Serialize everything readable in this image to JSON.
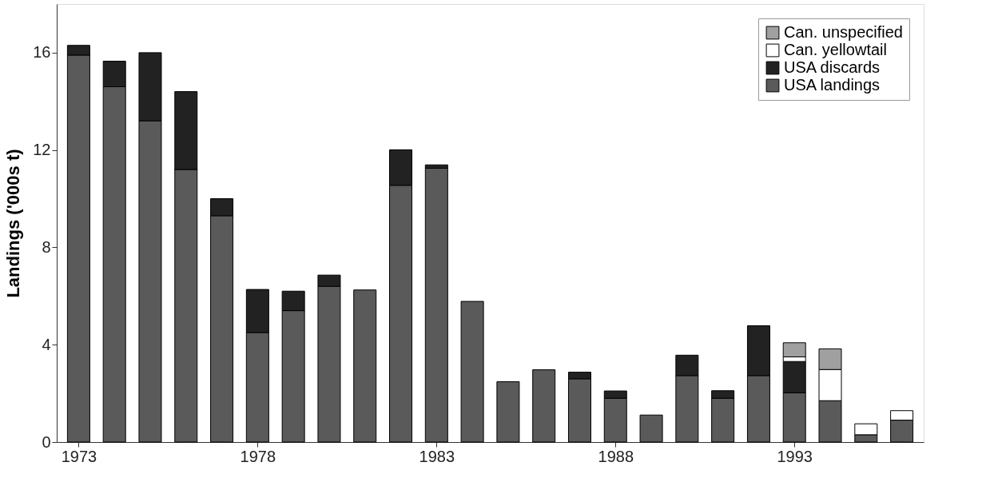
{
  "chart_data": {
    "type": "bar",
    "stacked": true,
    "ylabel": "Landings ('000s t)",
    "x": [
      1973,
      1974,
      1975,
      1976,
      1977,
      1978,
      1979,
      1980,
      1981,
      1982,
      1983,
      1984,
      1985,
      1986,
      1987,
      1988,
      1989,
      1990,
      1991,
      1992,
      1993,
      1994,
      1995,
      1996
    ],
    "xlim": [
      1972.5,
      1996.5
    ],
    "xticks": [
      1973,
      1978,
      1983,
      1988,
      1993
    ],
    "ylim": [
      0,
      18
    ],
    "yticks": [
      0,
      4,
      8,
      12,
      16
    ],
    "grid": false,
    "legend": "top right",
    "series": [
      {
        "name": "USA landings",
        "color": "#5a5a5a",
        "values": [
          15.9,
          14.6,
          13.2,
          11.2,
          9.3,
          4.5,
          5.4,
          6.4,
          6.25,
          10.55,
          11.25,
          5.78,
          2.48,
          2.97,
          2.6,
          1.8,
          1.11,
          2.73,
          1.8,
          2.73,
          2.02,
          1.7,
          0.3,
          0.9
        ]
      },
      {
        "name": "USA discards",
        "color": "#222222",
        "values": [
          0.4,
          1.05,
          2.8,
          3.2,
          0.7,
          1.77,
          0.8,
          0.46,
          null,
          1.46,
          0.14,
          null,
          null,
          null,
          0.27,
          0.3,
          null,
          0.84,
          0.31,
          2.05,
          1.29,
          null,
          null,
          null
        ]
      },
      {
        "name": "Can. yellowtail",
        "color": "#ffffff",
        "values": [
          null,
          null,
          null,
          null,
          null,
          null,
          null,
          null,
          null,
          null,
          null,
          null,
          null,
          null,
          null,
          null,
          null,
          null,
          null,
          null,
          0.19,
          1.28,
          0.45,
          0.39
        ]
      },
      {
        "name": "Can. unspecified",
        "color": "#a0a0a0",
        "values": [
          null,
          null,
          null,
          null,
          null,
          null,
          null,
          null,
          null,
          null,
          null,
          null,
          null,
          null,
          null,
          null,
          null,
          null,
          null,
          null,
          0.58,
          0.85,
          null,
          null
        ]
      }
    ]
  }
}
